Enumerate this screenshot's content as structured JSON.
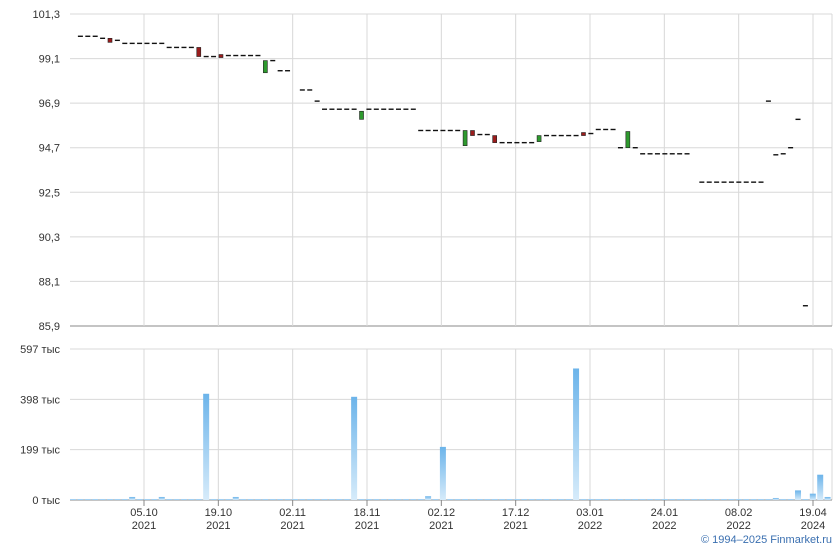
{
  "chart_data": [
    {
      "type": "candlestick",
      "panel": "price",
      "y_ticks": [
        "101,3",
        "99,1",
        "96,9",
        "94,7",
        "92,5",
        "90,3",
        "88,1",
        "85,9"
      ],
      "ylim": [
        85.9,
        101.3
      ],
      "grid": true,
      "colors": {
        "up": "#2e9a2e",
        "down": "#9a1c1c",
        "flat": "#111111"
      },
      "candles": [
        {
          "i": 1,
          "o": 100.2,
          "c": 100.2
        },
        {
          "i": 2,
          "o": 100.2,
          "c": 100.2
        },
        {
          "i": 3,
          "o": 100.2,
          "c": 100.2
        },
        {
          "i": 4,
          "o": 100.1,
          "c": 100.1
        },
        {
          "i": 5,
          "o": 100.1,
          "c": 99.9
        },
        {
          "i": 6,
          "o": 100.0,
          "c": 100.0
        },
        {
          "i": 7,
          "o": 99.85,
          "c": 99.85
        },
        {
          "i": 8,
          "o": 99.85,
          "c": 99.85
        },
        {
          "i": 9,
          "o": 99.85,
          "c": 99.85
        },
        {
          "i": 10,
          "o": 99.85,
          "c": 99.85
        },
        {
          "i": 11,
          "o": 99.85,
          "c": 99.85
        },
        {
          "i": 12,
          "o": 99.85,
          "c": 99.85
        },
        {
          "i": 13,
          "o": 99.65,
          "c": 99.65
        },
        {
          "i": 14,
          "o": 99.65,
          "c": 99.65
        },
        {
          "i": 15,
          "o": 99.65,
          "c": 99.65
        },
        {
          "i": 16,
          "o": 99.65,
          "c": 99.65
        },
        {
          "i": 17,
          "o": 99.65,
          "c": 99.2
        },
        {
          "i": 18,
          "o": 99.2,
          "c": 99.2
        },
        {
          "i": 19,
          "o": 99.2,
          "c": 99.2
        },
        {
          "i": 20,
          "o": 99.3,
          "c": 99.15
        },
        {
          "i": 21,
          "o": 99.25,
          "c": 99.25
        },
        {
          "i": 22,
          "o": 99.25,
          "c": 99.25
        },
        {
          "i": 23,
          "o": 99.25,
          "c": 99.25
        },
        {
          "i": 24,
          "o": 99.25,
          "c": 99.25
        },
        {
          "i": 25,
          "o": 99.25,
          "c": 99.25
        },
        {
          "i": 26,
          "o": 98.4,
          "c": 99.0
        },
        {
          "i": 27,
          "o": 99.0,
          "c": 99.0
        },
        {
          "i": 28,
          "o": 98.5,
          "c": 98.5
        },
        {
          "i": 29,
          "o": 98.5,
          "c": 98.5
        },
        {
          "i": 31,
          "o": 97.55,
          "c": 97.55
        },
        {
          "i": 32,
          "o": 97.55,
          "c": 97.55
        },
        {
          "i": 33,
          "o": 97.0,
          "c": 97.0
        },
        {
          "i": 34,
          "o": 96.6,
          "c": 96.6
        },
        {
          "i": 35,
          "o": 96.6,
          "c": 96.6
        },
        {
          "i": 36,
          "o": 96.6,
          "c": 96.6
        },
        {
          "i": 37,
          "o": 96.6,
          "c": 96.6
        },
        {
          "i": 38,
          "o": 96.6,
          "c": 96.6
        },
        {
          "i": 39,
          "o": 96.1,
          "c": 96.5
        },
        {
          "i": 40,
          "o": 96.6,
          "c": 96.6
        },
        {
          "i": 41,
          "o": 96.6,
          "c": 96.6
        },
        {
          "i": 42,
          "o": 96.6,
          "c": 96.6
        },
        {
          "i": 43,
          "o": 96.6,
          "c": 96.6
        },
        {
          "i": 44,
          "o": 96.6,
          "c": 96.6
        },
        {
          "i": 45,
          "o": 96.6,
          "c": 96.6
        },
        {
          "i": 46,
          "o": 96.6,
          "c": 96.6
        },
        {
          "i": 47,
          "o": 95.55,
          "c": 95.55
        },
        {
          "i": 48,
          "o": 95.55,
          "c": 95.55
        },
        {
          "i": 49,
          "o": 95.55,
          "c": 95.55
        },
        {
          "i": 50,
          "o": 95.55,
          "c": 95.55
        },
        {
          "i": 51,
          "o": 95.55,
          "c": 95.55
        },
        {
          "i": 52,
          "o": 95.55,
          "c": 95.55
        },
        {
          "i": 53,
          "o": 94.8,
          "c": 95.55
        },
        {
          "i": 54,
          "o": 95.55,
          "c": 95.3
        },
        {
          "i": 55,
          "o": 95.35,
          "c": 95.35
        },
        {
          "i": 56,
          "o": 95.35,
          "c": 95.35
        },
        {
          "i": 57,
          "o": 95.3,
          "c": 94.95
        },
        {
          "i": 58,
          "o": 94.95,
          "c": 94.95
        },
        {
          "i": 59,
          "o": 94.95,
          "c": 94.95
        },
        {
          "i": 60,
          "o": 94.95,
          "c": 94.95
        },
        {
          "i": 61,
          "o": 94.95,
          "c": 94.95
        },
        {
          "i": 62,
          "o": 94.95,
          "c": 94.95
        },
        {
          "i": 63,
          "o": 95.0,
          "c": 95.3
        },
        {
          "i": 64,
          "o": 95.3,
          "c": 95.3
        },
        {
          "i": 65,
          "o": 95.3,
          "c": 95.3
        },
        {
          "i": 66,
          "o": 95.3,
          "c": 95.3
        },
        {
          "i": 67,
          "o": 95.3,
          "c": 95.3
        },
        {
          "i": 68,
          "o": 95.3,
          "c": 95.3
        },
        {
          "i": 69,
          "o": 95.45,
          "c": 95.3
        },
        {
          "i": 70,
          "o": 95.4,
          "c": 95.4
        },
        {
          "i": 71,
          "o": 95.6,
          "c": 95.6
        },
        {
          "i": 72,
          "o": 95.6,
          "c": 95.6
        },
        {
          "i": 73,
          "o": 95.6,
          "c": 95.6
        },
        {
          "i": 74,
          "o": 94.7,
          "c": 94.7
        },
        {
          "i": 75,
          "o": 94.7,
          "c": 95.5
        },
        {
          "i": 76,
          "o": 94.7,
          "c": 94.7
        },
        {
          "i": 77,
          "o": 94.4,
          "c": 94.4
        },
        {
          "i": 78,
          "o": 94.4,
          "c": 94.4
        },
        {
          "i": 79,
          "o": 94.4,
          "c": 94.4
        },
        {
          "i": 80,
          "o": 94.4,
          "c": 94.4
        },
        {
          "i": 81,
          "o": 94.4,
          "c": 94.4
        },
        {
          "i": 82,
          "o": 94.4,
          "c": 94.4
        },
        {
          "i": 83,
          "o": 94.4,
          "c": 94.4
        },
        {
          "i": 85,
          "o": 93.0,
          "c": 93.0
        },
        {
          "i": 86,
          "o": 93.0,
          "c": 93.0
        },
        {
          "i": 87,
          "o": 93.0,
          "c": 93.0
        },
        {
          "i": 88,
          "o": 93.0,
          "c": 93.0
        },
        {
          "i": 89,
          "o": 93.0,
          "c": 93.0
        },
        {
          "i": 90,
          "o": 93.0,
          "c": 93.0
        },
        {
          "i": 91,
          "o": 93.0,
          "c": 93.0
        },
        {
          "i": 92,
          "o": 93.0,
          "c": 93.0
        },
        {
          "i": 93,
          "o": 93.0,
          "c": 93.0
        },
        {
          "i": 94,
          "o": 97.0,
          "c": 97.0
        },
        {
          "i": 95,
          "o": 94.35,
          "c": 94.35
        },
        {
          "i": 96,
          "o": 94.4,
          "c": 94.4
        },
        {
          "i": 97,
          "o": 94.7,
          "c": 94.7
        },
        {
          "i": 98,
          "o": 96.1,
          "c": 96.1
        },
        {
          "i": 99,
          "o": 86.9,
          "c": 86.9
        }
      ]
    },
    {
      "type": "bar",
      "panel": "volume",
      "y_ticks": [
        "597 тыс",
        "398 тыс",
        "199 тыс",
        "0 тыс"
      ],
      "ylim": [
        0,
        597
      ],
      "unit": "тыс",
      "grid": true,
      "color": "#6cb4ea",
      "volumes": [
        4,
        4,
        4,
        4,
        4,
        4,
        4,
        4,
        12,
        4,
        4,
        4,
        12,
        4,
        4,
        4,
        4,
        4,
        420,
        4,
        4,
        4,
        12,
        4,
        4,
        4,
        4,
        4,
        4,
        4,
        4,
        4,
        4,
        4,
        4,
        4,
        4,
        4,
        408,
        4,
        4,
        4,
        4,
        4,
        4,
        4,
        4,
        4,
        15,
        4,
        210,
        4,
        4,
        4,
        4,
        4,
        4,
        4,
        4,
        4,
        4,
        4,
        4,
        4,
        4,
        4,
        4,
        4,
        520,
        4,
        4,
        4,
        4,
        4,
        4,
        4,
        4,
        4,
        4,
        4,
        4,
        4,
        4,
        4,
        4,
        4,
        4,
        4,
        4,
        4,
        4,
        4,
        4,
        4,
        4,
        8,
        4,
        4,
        38,
        4,
        25,
        100,
        12
      ]
    }
  ],
  "x_axis": {
    "ticks": [
      {
        "date": "05.10",
        "year": "2021"
      },
      {
        "date": "19.10",
        "year": "2021"
      },
      {
        "date": "02.11",
        "year": "2021"
      },
      {
        "date": "18.11",
        "year": "2021"
      },
      {
        "date": "02.12",
        "year": "2021"
      },
      {
        "date": "17.12",
        "year": "2021"
      },
      {
        "date": "03.01",
        "year": "2022"
      },
      {
        "date": "24.01",
        "year": "2022"
      },
      {
        "date": "08.02",
        "year": "2022"
      },
      {
        "date": "19.04",
        "year": "2024"
      }
    ]
  },
  "footer": {
    "copyright": "© 1994–2025 Finmarket.ru"
  }
}
